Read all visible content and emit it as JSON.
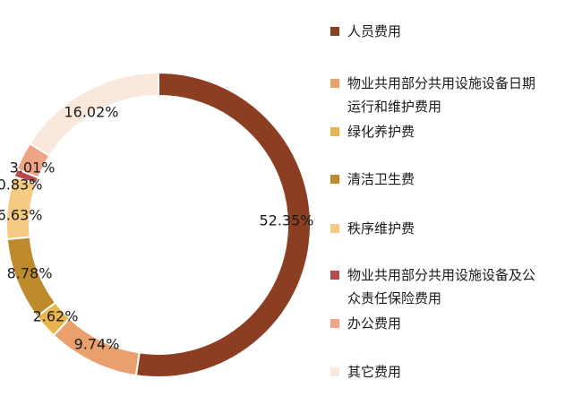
{
  "chart_data": {
    "type": "pie",
    "donut": true,
    "legend_position": "right",
    "series": [
      {
        "name": "人员费用",
        "value": 52.35,
        "label": "52.35%",
        "color": "#8B3E22"
      },
      {
        "name": "物业共用部分共用设施设备日期运行和维护费用",
        "value": 9.74,
        "label": "9.74%",
        "color": "#E9A06D"
      },
      {
        "name": "绿化养护费",
        "value": 2.62,
        "label": "2.62%",
        "color": "#E8B54D"
      },
      {
        "name": "清洁卫生费",
        "value": 8.78,
        "label": "8.78%",
        "color": "#BD8A2C"
      },
      {
        "name": "秩序维护费",
        "value": 6.63,
        "label": "6.63%",
        "color": "#F5CB84"
      },
      {
        "name": "物业共用部分共用设施设备及公众责任保险费用",
        "value": 0.83,
        "label": "0.83%",
        "color": "#B94A4D"
      },
      {
        "name": "办公费用",
        "value": 3.01,
        "label": "3.01%",
        "color": "#EFA485"
      },
      {
        "name": "其它费用",
        "value": 16.02,
        "label": "16.02%",
        "color": "#FBE8DC"
      }
    ]
  }
}
